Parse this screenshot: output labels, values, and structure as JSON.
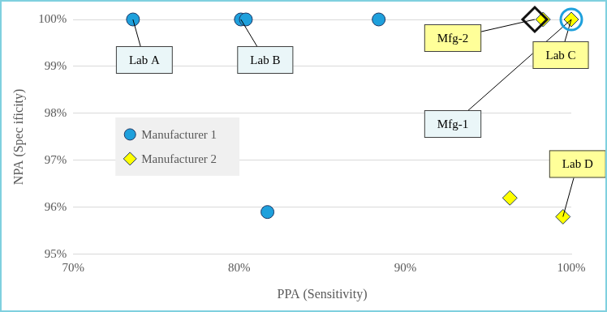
{
  "chart_data": {
    "type": "scatter",
    "xlabel": "PPA (Sensitivity)",
    "ylabel": "NPA (Spec ificity)",
    "xlim": [
      70,
      100
    ],
    "xticks": [
      {
        "value": 70,
        "label": "70%"
      },
      {
        "value": 80,
        "label": "80%"
      },
      {
        "value": 90,
        "label": "90%"
      },
      {
        "value": 100,
        "label": "100%"
      }
    ],
    "ylim": [
      95,
      100
    ],
    "yticks": [
      {
        "value": 95,
        "label": "95%"
      },
      {
        "value": 96,
        "label": "96%"
      },
      {
        "value": 97,
        "label": "97%"
      },
      {
        "value": 98,
        "label": "98%"
      },
      {
        "value": 99,
        "label": "99%"
      },
      {
        "value": 100,
        "label": "100%"
      }
    ],
    "grid": "y",
    "legend": "left",
    "series": [
      {
        "name": "Manufacturer 1",
        "color": "#1ea0dc",
        "marker": "circle",
        "x": [
          73.6,
          80.1,
          80.4,
          88.4,
          81.7
        ],
        "values": [
          100,
          100,
          100,
          100,
          95.9
        ]
      },
      {
        "name": "Manufacturer 2",
        "color": "#ffff00",
        "marker": "diamond",
        "x": [
          98.3,
          100,
          96.3,
          99.5
        ],
        "values": [
          100,
          100,
          96.2,
          95.8
        ]
      }
    ],
    "annotations": [
      {
        "text": "Lab A",
        "x": 73.6,
        "y": 100,
        "color": "#eaf6f8"
      },
      {
        "text": "Lab B",
        "x": 80.1,
        "y": 100,
        "color": "#eaf6f8"
      },
      {
        "text": "Mfg-2",
        "x": 97.8,
        "y": 100,
        "color": "#ffff99",
        "marker": "diamond"
      },
      {
        "text": "Mfg-1",
        "x": 100,
        "y": 100,
        "color": "#eaf6f8",
        "marker": "circle"
      },
      {
        "text": "Lab C",
        "x": 100,
        "y": 100,
        "color": "#ffff99"
      },
      {
        "text": "Lab D",
        "x": 99.5,
        "y": 95.8,
        "color": "#ffff99"
      }
    ]
  }
}
